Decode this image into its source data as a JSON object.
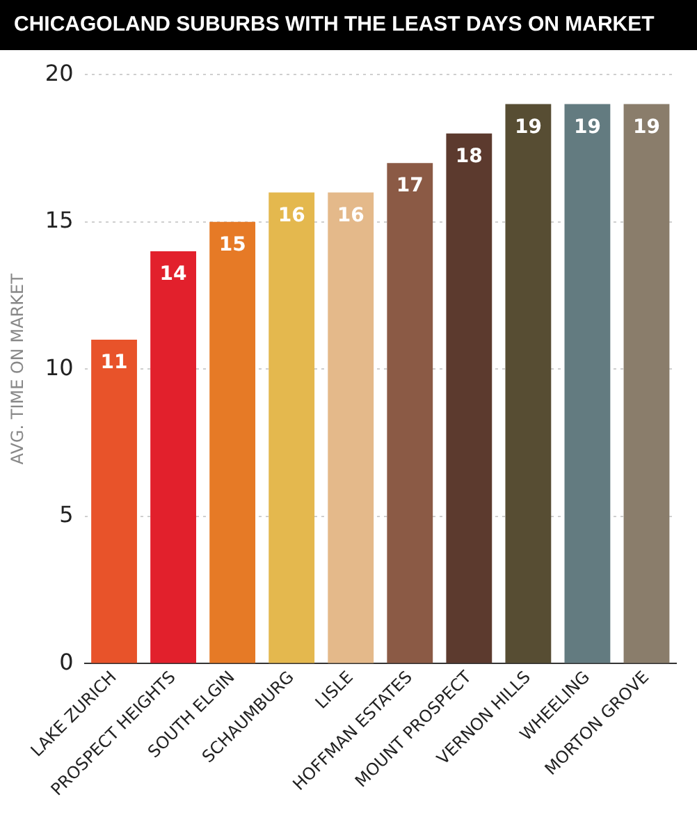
{
  "chart_data": {
    "type": "bar",
    "title": "CHICAGOLAND SUBURBS WITH THE LEAST DAYS ON MARKET",
    "ylabel": "AVG. TIME ON MARKET",
    "categories": [
      "LAKE ZURICH",
      "PROSPECT HEIGHTS",
      "SOUTH ELGIN",
      "SCHAUMBURG",
      "LISLE",
      "HOFFMAN ESTATES",
      "MOUNT PROSPECT",
      "VERNON HILLS",
      "WHEELING",
      "MORTON GROVE"
    ],
    "values": [
      11,
      14,
      15,
      16,
      16,
      17,
      18,
      19,
      19,
      19
    ],
    "colors": [
      "#e8532a",
      "#e2202c",
      "#e67a26",
      "#e4b84e",
      "#e4b98a",
      "#8b5a45",
      "#5c3a2e",
      "#574d33",
      "#637b80",
      "#8a7d6b"
    ],
    "ylim": [
      0,
      20
    ],
    "yticks": [
      0,
      5,
      10,
      15,
      20
    ],
    "grid": "y",
    "data_labels": true
  }
}
